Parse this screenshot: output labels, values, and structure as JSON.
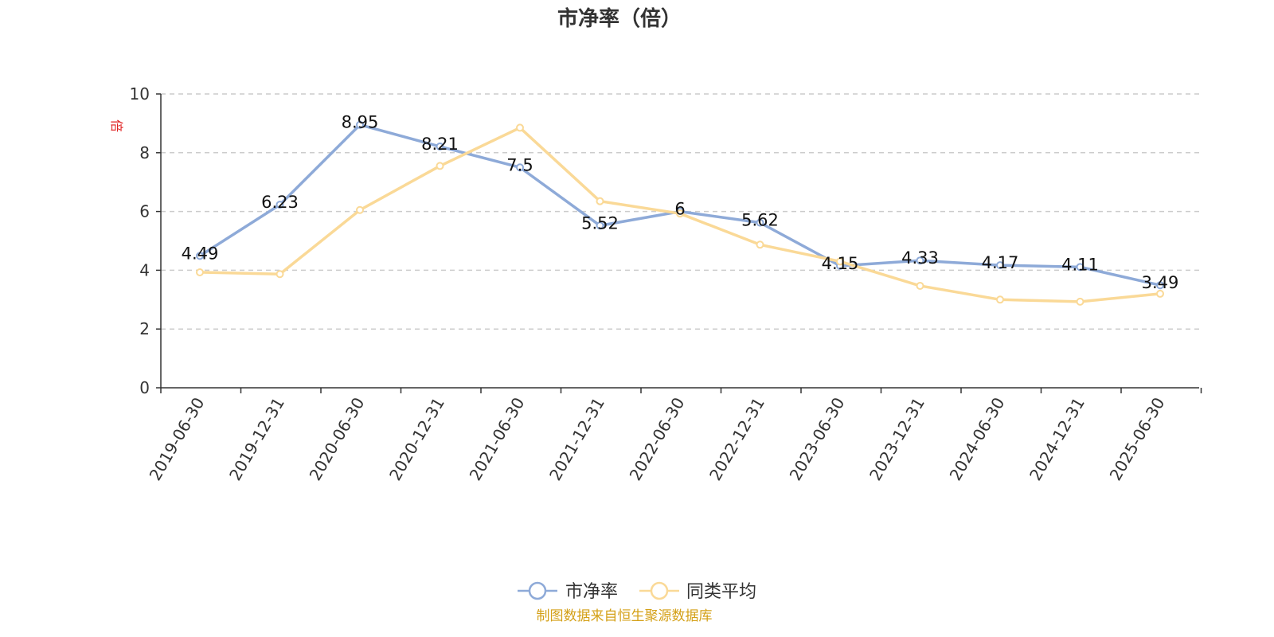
{
  "chart_data": {
    "type": "line",
    "title": "市净率（倍）",
    "ylabel": "倍",
    "xlabel": "",
    "categories": [
      "2019-06-30",
      "2019-12-31",
      "2020-06-30",
      "2020-12-31",
      "2021-06-30",
      "2021-12-31",
      "2022-06-30",
      "2022-12-31",
      "2023-06-30",
      "2023-12-31",
      "2024-06-30",
      "2024-12-31",
      "2025-06-30"
    ],
    "ylim": [
      0,
      10
    ],
    "yticks": [
      0,
      2,
      4,
      6,
      8,
      10
    ],
    "grid": true,
    "legend_position": "bottom-center",
    "series": [
      {
        "name": "市净率",
        "color": "#8eaad8",
        "values": [
          4.49,
          6.23,
          8.95,
          8.21,
          7.5,
          5.52,
          6,
          5.62,
          4.15,
          4.33,
          4.17,
          4.11,
          3.49
        ],
        "labels": [
          "4.49",
          "6.23",
          "8.95",
          "8.21",
          "7.5",
          "5.52",
          "6",
          "5.62",
          "4.15",
          "4.33",
          "4.17",
          "4.11",
          "3.49"
        ]
      },
      {
        "name": "同类平均",
        "color": "#fad997",
        "values": [
          3.93,
          3.87,
          6.05,
          7.55,
          8.85,
          6.35,
          5.93,
          4.87,
          4.3,
          3.47,
          3.0,
          2.93,
          3.2
        ]
      }
    ]
  },
  "source_note": "制图数据来自恒生聚源数据库"
}
